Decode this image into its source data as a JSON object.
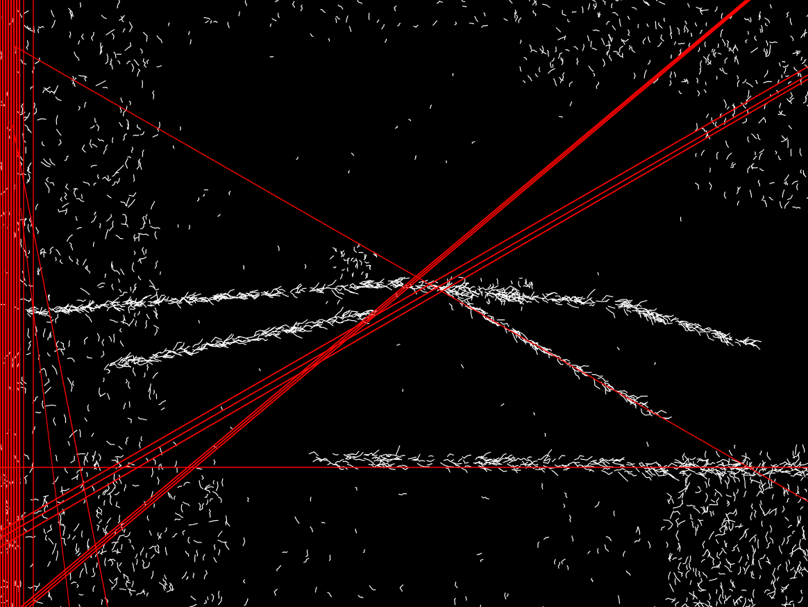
{
  "image": {
    "kind": "edge-detection-with-hough-lines",
    "background_color": "#000000",
    "edge_color": "#ffffff",
    "detected_line_color": "#ff0000"
  }
}
